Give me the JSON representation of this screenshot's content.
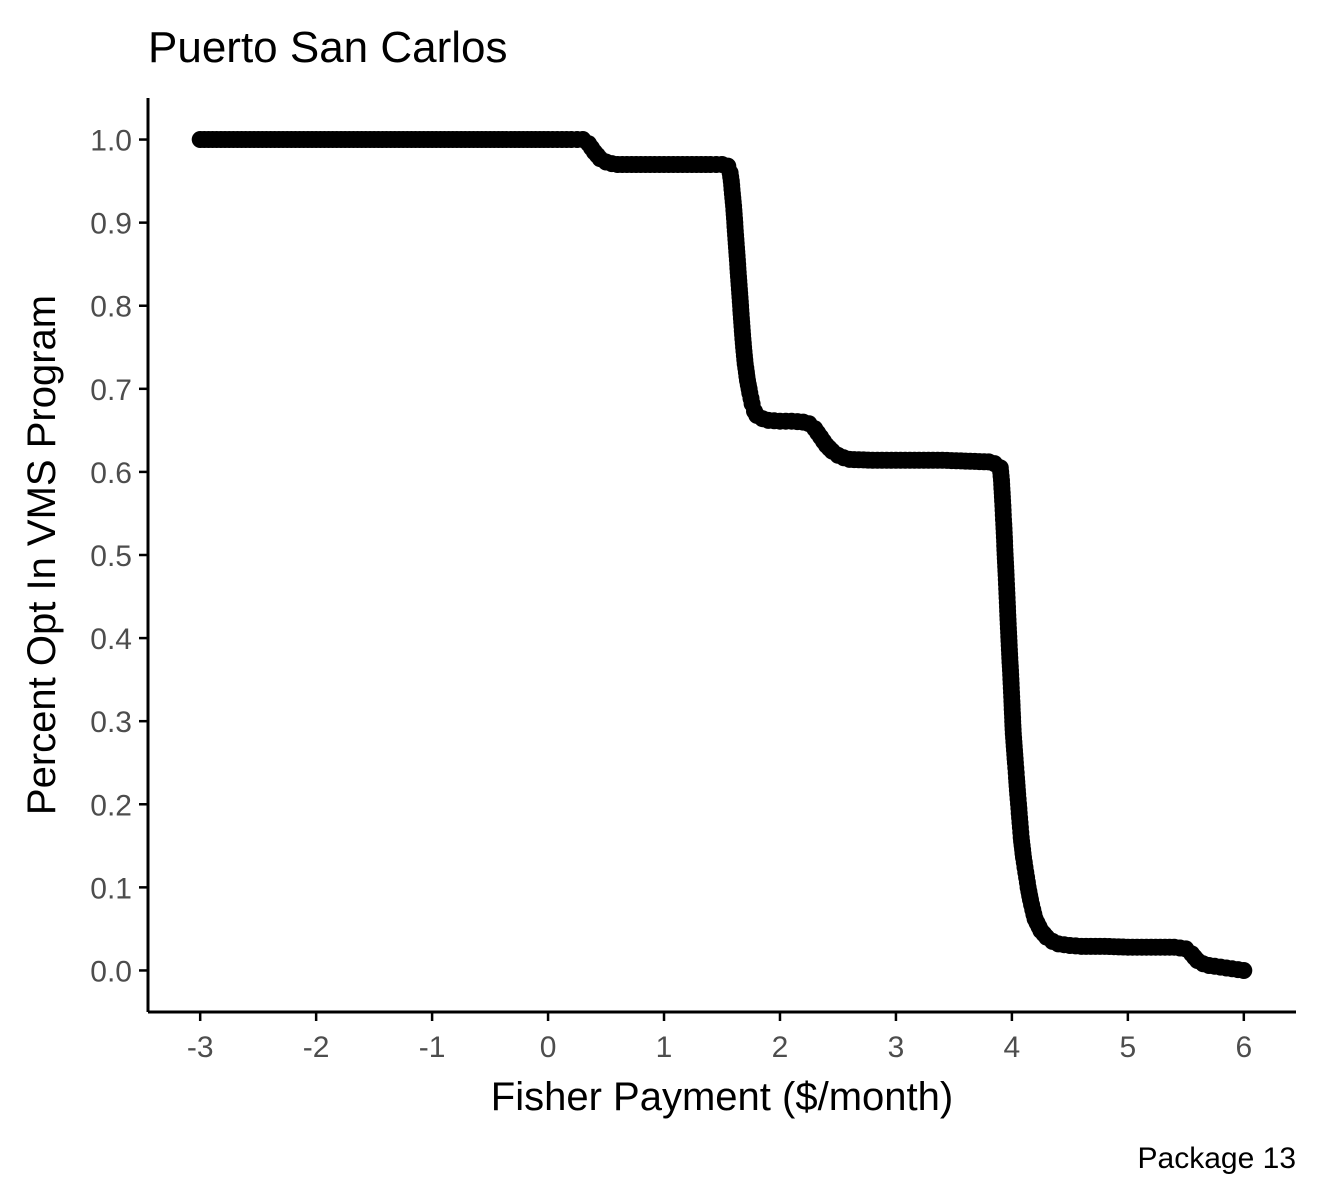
{
  "chart_data": {
    "type": "scatter",
    "title": "Puerto San Carlos",
    "xlabel": "Fisher Payment ($/month)",
    "ylabel": "Percent Opt In VMS Program",
    "caption": "Package 13",
    "xlim": [
      -3.45,
      6.45
    ],
    "ylim": [
      -0.05,
      1.05
    ],
    "x_ticks": [
      -3,
      -2,
      -1,
      0,
      1,
      2,
      3,
      4,
      5,
      6
    ],
    "x_tick_labels": [
      "-3",
      "-2",
      "-1",
      "0",
      "1",
      "2",
      "3",
      "4",
      "5",
      "6"
    ],
    "y_ticks": [
      0,
      0.1,
      0.2,
      0.3,
      0.4,
      0.5,
      0.6,
      0.7,
      0.8,
      0.9,
      1.0
    ],
    "y_tick_labels": [
      "0.0",
      "0.1",
      "0.2",
      "0.3",
      "0.4",
      "0.5",
      "0.6",
      "0.7",
      "0.8",
      "0.9",
      "1.0"
    ],
    "grid": false,
    "legend": "none",
    "point_color": "#000000",
    "series": [
      {
        "x": [
          -3.0,
          -2.5,
          -2.0,
          -1.5,
          -1.0,
          -0.5,
          0.0,
          0.2,
          0.3,
          0.35,
          0.4,
          0.45,
          0.5,
          0.55,
          0.6,
          0.8,
          1.0,
          1.2,
          1.4,
          1.5,
          1.55,
          1.57,
          1.58,
          1.59,
          1.6,
          1.61,
          1.62,
          1.63,
          1.64,
          1.65,
          1.66,
          1.67,
          1.68,
          1.69,
          1.7,
          1.72,
          1.74,
          1.76,
          1.78,
          1.8,
          1.85,
          1.9,
          2.0,
          2.1,
          2.2,
          2.25,
          2.3,
          2.35,
          2.4,
          2.45,
          2.5,
          2.55,
          2.6,
          2.8,
          3.0,
          3.2,
          3.4,
          3.6,
          3.8,
          3.85,
          3.9,
          3.91,
          3.92,
          3.93,
          3.94,
          3.95,
          3.96,
          3.97,
          3.98,
          3.99,
          4.0,
          4.01,
          4.02,
          4.03,
          4.04,
          4.05,
          4.06,
          4.07,
          4.08,
          4.1,
          4.12,
          4.14,
          4.16,
          4.18,
          4.2,
          4.25,
          4.3,
          4.35,
          4.4,
          4.5,
          4.6,
          4.8,
          5.0,
          5.2,
          5.4,
          5.45,
          5.5,
          5.55,
          5.6,
          5.65,
          5.7,
          5.75,
          5.8,
          5.85,
          5.9,
          5.95,
          6.0
        ],
        "values": [
          1.0,
          1.0,
          1.0,
          1.0,
          1.0,
          1.0,
          1.0,
          1.0,
          1.0,
          0.995,
          0.985,
          0.977,
          0.973,
          0.971,
          0.97,
          0.97,
          0.97,
          0.97,
          0.97,
          0.97,
          0.968,
          0.96,
          0.95,
          0.935,
          0.92,
          0.9,
          0.88,
          0.86,
          0.84,
          0.82,
          0.8,
          0.78,
          0.76,
          0.745,
          0.73,
          0.71,
          0.695,
          0.682,
          0.673,
          0.668,
          0.664,
          0.662,
          0.661,
          0.661,
          0.66,
          0.658,
          0.652,
          0.642,
          0.632,
          0.625,
          0.62,
          0.617,
          0.615,
          0.614,
          0.614,
          0.614,
          0.614,
          0.613,
          0.612,
          0.61,
          0.605,
          0.59,
          0.565,
          0.537,
          0.506,
          0.476,
          0.443,
          0.412,
          0.381,
          0.356,
          0.324,
          0.29,
          0.27,
          0.25,
          0.232,
          0.212,
          0.195,
          0.178,
          0.16,
          0.136,
          0.118,
          0.1,
          0.085,
          0.073,
          0.062,
          0.048,
          0.04,
          0.035,
          0.032,
          0.03,
          0.029,
          0.029,
          0.028,
          0.028,
          0.028,
          0.027,
          0.026,
          0.02,
          0.012,
          0.008,
          0.006,
          0.005,
          0.004,
          0.003,
          0.002,
          0.001,
          0.0
        ]
      }
    ]
  }
}
